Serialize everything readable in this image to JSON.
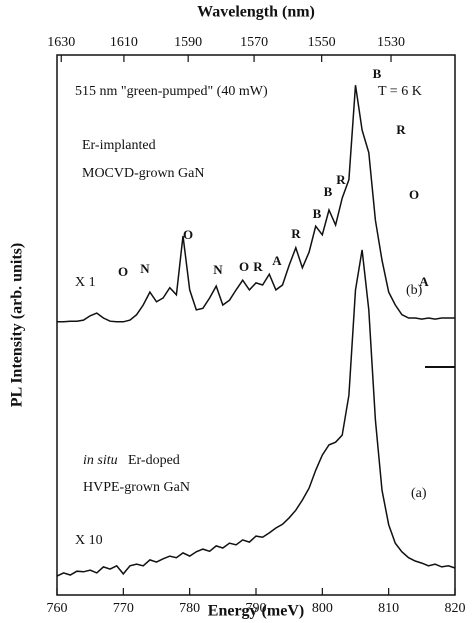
{
  "chart_data": {
    "type": "line",
    "xlabel": "Energy (meV)",
    "ylabel": "PL Intensity (arb. units)",
    "x2label": "Wavelength (nm)",
    "xlim": [
      760,
      820
    ],
    "xticks": [
      760,
      770,
      780,
      790,
      800,
      810,
      820
    ],
    "x2ticks": [
      1630,
      1610,
      1590,
      1570,
      1550,
      1530
    ],
    "ylim": [
      0,
      100
    ],
    "x": [
      760,
      761,
      762,
      763,
      764,
      765,
      766,
      767,
      768,
      769,
      770,
      771,
      772,
      773,
      774,
      775,
      776,
      777,
      778,
      779,
      780,
      781,
      782,
      783,
      784,
      785,
      786,
      787,
      788,
      789,
      790,
      791,
      792,
      793,
      794,
      795,
      796,
      797,
      798,
      799,
      800,
      801,
      802,
      803,
      804,
      805,
      806,
      807,
      808,
      809,
      810,
      811,
      812,
      813,
      814,
      815,
      816,
      817,
      818,
      819,
      820
    ],
    "series": [
      {
        "name": "(b)",
        "color": "#111111",
        "values": [
          50.6,
          50.6,
          50.7,
          50.7,
          50.9,
          51.7,
          52.2,
          51.3,
          50.7,
          50.6,
          50.6,
          50.9,
          51.9,
          53.7,
          56.1,
          54.3,
          55.0,
          56.9,
          55.6,
          66.5,
          56.5,
          52.8,
          53.1,
          55.0,
          57.2,
          53.7,
          54.6,
          56.5,
          58.3,
          56.5,
          57.8,
          57.4,
          59.4,
          56.5,
          57.4,
          61.1,
          64.3,
          60.6,
          63.5,
          68.3,
          66.7,
          71.3,
          68.5,
          73.5,
          76.9,
          94.4,
          86.1,
          81.9,
          69.4,
          62.0,
          56.1,
          53.7,
          51.9,
          51.3,
          51.3,
          51.1,
          51.3,
          51.1,
          51.3,
          51.3,
          51.3
        ]
      },
      {
        "name": "(a)",
        "color": "#111111",
        "values": [
          3.5,
          4.1,
          3.7,
          4.4,
          4.3,
          4.6,
          4.1,
          5.2,
          4.8,
          5.4,
          3.9,
          5.4,
          5.7,
          5.4,
          6.5,
          6.1,
          6.7,
          7.2,
          6.9,
          7.8,
          7.2,
          8.0,
          8.5,
          8.1,
          9.1,
          8.7,
          9.6,
          9.3,
          10.2,
          9.8,
          10.9,
          10.7,
          11.5,
          12.4,
          13.1,
          14.3,
          15.7,
          17.6,
          19.8,
          23.1,
          25.9,
          27.8,
          28.3,
          29.6,
          37.0,
          56.5,
          63.9,
          52.8,
          32.4,
          19.4,
          13.0,
          9.6,
          8.0,
          6.9,
          6.3,
          5.9,
          5.4,
          5.7,
          5.2,
          5.4,
          5.0
        ]
      }
    ],
    "annotations": [
      "515 nm \"green-pumped\" (40 mW)",
      "T = 6 K",
      "Er-implanted",
      "MOCVD-grown GaN",
      "X 1",
      "(b)",
      "in situ",
      "Er-doped",
      "HVPE-grown GaN",
      "X 10",
      "(a)"
    ],
    "peak_labels": [
      "O",
      "N",
      "O",
      "N",
      "O",
      "R",
      "A",
      "R",
      "B",
      "B",
      "R",
      "B",
      "R",
      "O",
      "A"
    ]
  }
}
